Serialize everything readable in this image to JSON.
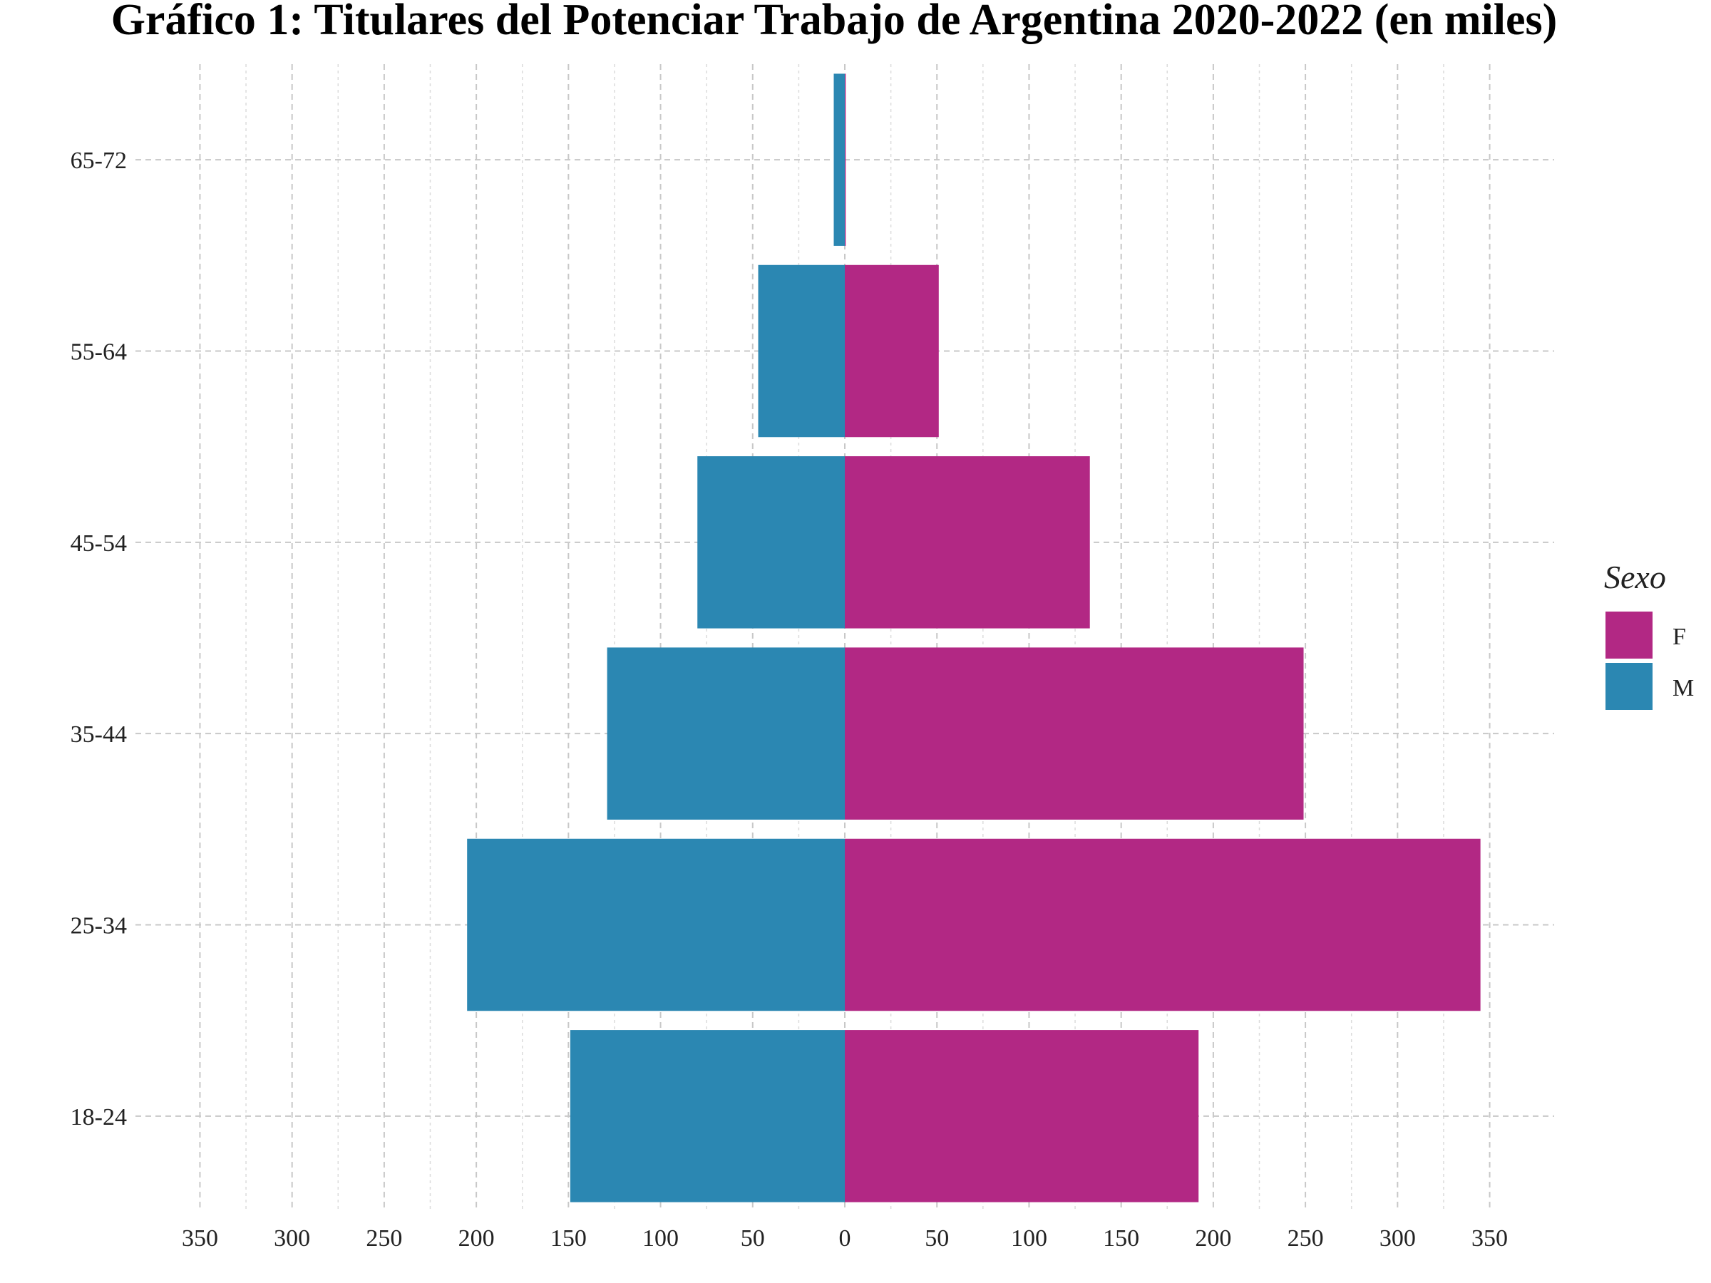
{
  "chart_data": {
    "type": "bar",
    "orientation": "horizontal",
    "layout": "population-pyramid",
    "title": "Gráfico 1: Titulares del Potenciar Trabajo de Argentina 2020-2022 (en miles)",
    "xlabel": "",
    "ylabel": "",
    "categories": [
      "18-24",
      "25-34",
      "35-44",
      "45-54",
      "55-64",
      "65-72"
    ],
    "series": [
      {
        "name": "F",
        "side": "right",
        "color": "#b22884",
        "values": [
          192,
          345,
          249,
          133,
          51,
          0.5
        ]
      },
      {
        "name": "M",
        "side": "left",
        "color": "#2b87b2",
        "values": [
          149,
          205,
          129,
          80,
          47,
          6
        ]
      }
    ],
    "xlim": [
      -385,
      385
    ],
    "x_ticks": [
      -350,
      -300,
      -250,
      -200,
      -150,
      -100,
      -50,
      0,
      50,
      100,
      150,
      200,
      250,
      300,
      350
    ],
    "x_tick_labels": [
      "350",
      "300",
      "250",
      "200",
      "150",
      "100",
      "50",
      "0",
      "50",
      "100",
      "150",
      "200",
      "250",
      "300",
      "350"
    ],
    "grid": true,
    "legend": {
      "title": "Sexo",
      "position": "right",
      "items": [
        {
          "label": "F",
          "color": "#b22884"
        },
        {
          "label": "M",
          "color": "#2b87b2"
        }
      ]
    }
  }
}
